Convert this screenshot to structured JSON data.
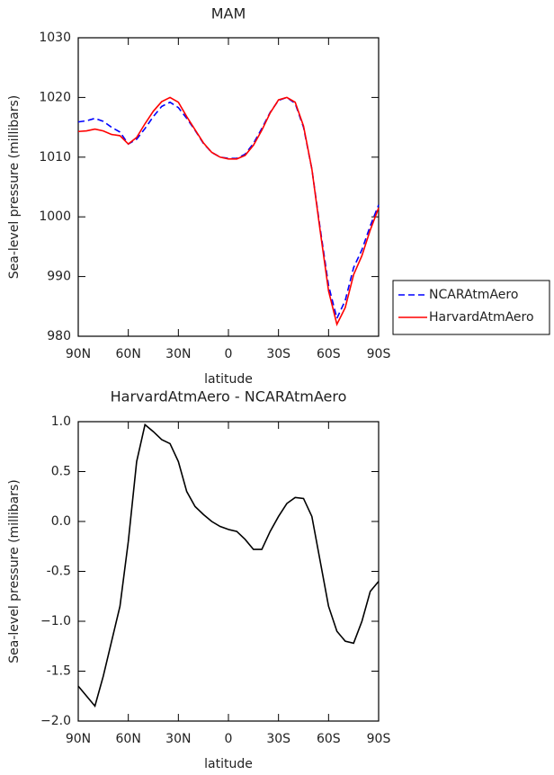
{
  "chart_data": [
    {
      "type": "line",
      "title": "MAM",
      "x_label": "latitude",
      "y_label": "Sea-level pressure (millibars)",
      "x": [
        90,
        85,
        80,
        75,
        70,
        65,
        60,
        55,
        50,
        45,
        40,
        35,
        30,
        25,
        20,
        15,
        10,
        5,
        0,
        -5,
        -10,
        -15,
        -20,
        -25,
        -30,
        -35,
        -40,
        -45,
        -50,
        -55,
        -60,
        -65,
        -70,
        -75,
        -80,
        -85,
        -90
      ],
      "series": [
        {
          "name": "NCARAtmAero",
          "color": "#0000ff",
          "style": "dashed",
          "values": [
            1015.9,
            1016.1,
            1016.5,
            1016.0,
            1015.0,
            1014.2,
            1012.2,
            1013.0,
            1014.8,
            1016.8,
            1018.5,
            1019.2,
            1018.3,
            1016.5,
            1014.5,
            1012.3,
            1010.8,
            1010.0,
            1009.8,
            1009.8,
            1010.5,
            1012.3,
            1014.8,
            1017.5,
            1019.5,
            1020.0,
            1019.0,
            1015.0,
            1008.0,
            998.0,
            988.5,
            983.0,
            986.0,
            991.5,
            994.5,
            998.5,
            1002.0
          ]
        },
        {
          "name": "HarvardAtmAero",
          "color": "#ff0000",
          "style": "solid",
          "values": [
            1014.3,
            1014.4,
            1014.7,
            1014.4,
            1013.8,
            1013.6,
            1012.2,
            1013.3,
            1015.6,
            1017.7,
            1019.3,
            1020.0,
            1019.2,
            1016.8,
            1014.6,
            1012.4,
            1010.8,
            1010.0,
            1009.7,
            1009.7,
            1010.3,
            1012.0,
            1014.5,
            1017.4,
            1019.6,
            1020.0,
            1019.2,
            1015.2,
            1008.0,
            997.6,
            987.6,
            982.0,
            984.8,
            990.3,
            993.5,
            997.8,
            1001.5
          ]
        }
      ],
      "xlim": [
        90,
        -90
      ],
      "xticks": [
        {
          "value": 90,
          "label": "90N"
        },
        {
          "value": 60,
          "label": "60N"
        },
        {
          "value": 30,
          "label": "30N"
        },
        0,
        {
          "value": -30,
          "label": "30S"
        },
        {
          "value": -60,
          "label": "60S"
        },
        {
          "value": -90,
          "label": "90S"
        }
      ],
      "ylim": [
        980,
        1030
      ],
      "yticks": [
        980,
        990,
        1000,
        1010,
        1020,
        1030
      ],
      "legend": "right"
    },
    {
      "type": "line",
      "title": "HarvardAtmAero - NCARAtmAero",
      "x_label": "latitude",
      "y_label": "Sea-level pressure (millibars)",
      "x": [
        90,
        85,
        80,
        75,
        70,
        65,
        60,
        55,
        50,
        45,
        40,
        35,
        30,
        25,
        20,
        15,
        10,
        5,
        0,
        -5,
        -10,
        -15,
        -20,
        -25,
        -30,
        -35,
        -40,
        -45,
        -50,
        -55,
        -60,
        -65,
        -70,
        -75,
        -80,
        -85,
        -90
      ],
      "color": "#000000",
      "values": [
        -1.65,
        -1.75,
        -1.85,
        -1.55,
        -1.2,
        -0.85,
        -0.2,
        0.6,
        0.97,
        0.9,
        0.82,
        0.78,
        0.6,
        0.3,
        0.15,
        0.07,
        0.0,
        -0.05,
        -0.08,
        -0.1,
        -0.18,
        -0.28,
        -0.28,
        -0.1,
        0.05,
        0.18,
        0.24,
        0.23,
        0.05,
        -0.4,
        -0.85,
        -1.1,
        -1.2,
        -1.22,
        -1.0,
        -0.7,
        -0.6
      ],
      "xlim": [
        90,
        -90
      ],
      "xticks": [
        {
          "value": 90,
          "label": "90N"
        },
        {
          "value": 60,
          "label": "60N"
        },
        {
          "value": 30,
          "label": "30N"
        },
        0,
        {
          "value": -30,
          "label": "30S"
        },
        {
          "value": -60,
          "label": "60S"
        },
        {
          "value": -90,
          "label": "90S"
        }
      ],
      "ylim": [
        -2,
        1
      ],
      "yticks": [
        {
          "value": -2,
          "label": "−2.0"
        },
        -1.5,
        {
          "value": -1,
          "label": "−1.0"
        },
        -0.5,
        {
          "value": 0,
          "label": "0.0"
        },
        0.5,
        {
          "value": 1,
          "label": "1.0"
        }
      ]
    }
  ]
}
